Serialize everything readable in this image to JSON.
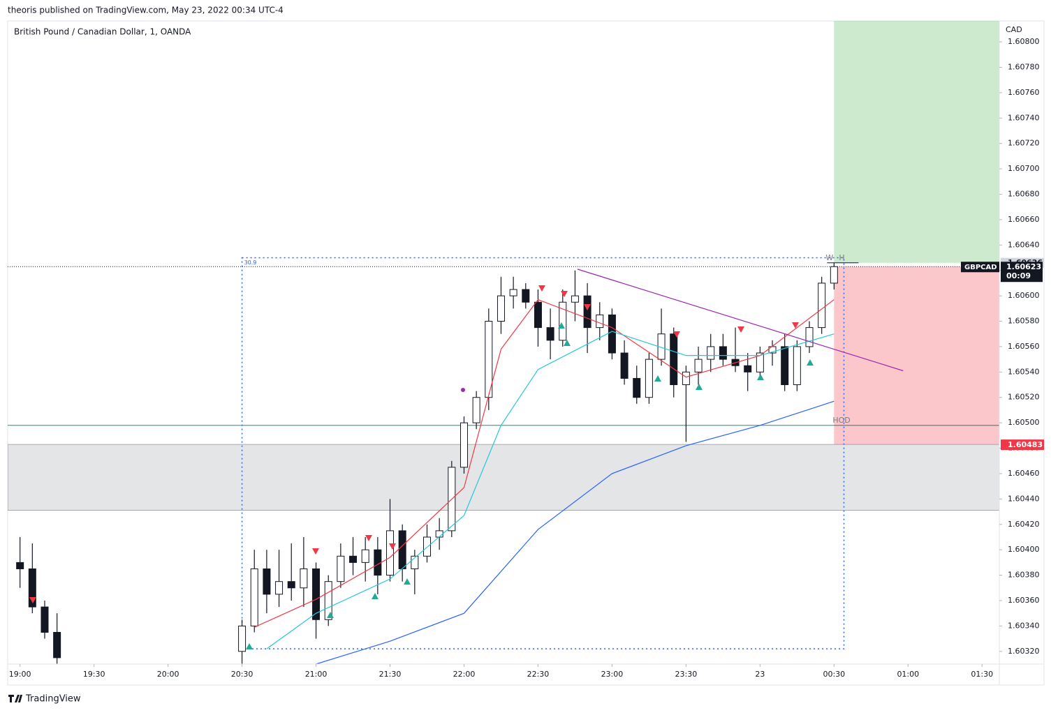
{
  "header": {
    "publisher": "theoris published on TradingView.com, May 23, 2022 00:34 UTC-4"
  },
  "footer": {
    "brand": "TradingView"
  },
  "chart_data": {
    "type": "candlestick",
    "title": "British Pound / Canadian Dollar, 1, OANDA",
    "axis_unit": "CAD",
    "x": [
      "19:00",
      "19:05",
      "19:10",
      "19:15",
      "20:30",
      "20:35",
      "20:40",
      "20:45",
      "20:50",
      "20:55",
      "21:00",
      "21:05",
      "21:10",
      "21:15",
      "21:20",
      "21:25",
      "21:30",
      "21:35",
      "21:40",
      "21:45",
      "21:50",
      "21:55",
      "22:00",
      "22:05",
      "22:10",
      "22:15",
      "22:20",
      "22:25",
      "22:30",
      "22:35",
      "22:40",
      "22:45",
      "22:50",
      "22:55",
      "23:00",
      "23:05",
      "23:10",
      "23:15",
      "23:20",
      "23:25",
      "23:30",
      "23:35",
      "23:40",
      "23:45",
      "23:50",
      "23:55",
      "00:00",
      "00:05",
      "00:10",
      "00:15",
      "00:20",
      "00:25",
      "00:30"
    ],
    "open": [
      1.6039,
      1.60385,
      1.60355,
      1.60335,
      1.6032,
      1.6034,
      1.60385,
      1.60365,
      1.60375,
      1.6037,
      1.60385,
      1.60345,
      1.60375,
      1.60395,
      1.6039,
      1.604,
      1.6038,
      1.60415,
      1.60385,
      1.60395,
      1.6041,
      1.60415,
      1.60465,
      1.605,
      1.6052,
      1.6058,
      1.606,
      1.60605,
      1.60595,
      1.60575,
      1.60565,
      1.60595,
      1.606,
      1.60575,
      1.60585,
      1.60555,
      1.60535,
      1.6052,
      1.6055,
      1.6057,
      1.6053,
      1.6054,
      1.6055,
      1.6056,
      1.6055,
      1.60545,
      1.6054,
      1.60555,
      1.6056,
      1.6053,
      1.6056,
      1.60575,
      1.6061
    ],
    "high": [
      1.6041,
      1.60405,
      1.6036,
      1.6035,
      1.60345,
      1.604,
      1.604,
      1.604,
      1.60405,
      1.6041,
      1.6039,
      1.6038,
      1.60405,
      1.6041,
      1.6041,
      1.6041,
      1.6044,
      1.6042,
      1.604,
      1.6042,
      1.60425,
      1.6047,
      1.60505,
      1.60525,
      1.6059,
      1.60615,
      1.60615,
      1.6061,
      1.60605,
      1.6059,
      1.60605,
      1.6062,
      1.6061,
      1.60595,
      1.6059,
      1.60565,
      1.60545,
      1.60555,
      1.6059,
      1.60575,
      1.60545,
      1.6056,
      1.6057,
      1.6057,
      1.60575,
      1.60555,
      1.6056,
      1.60565,
      1.6057,
      1.60565,
      1.6058,
      1.60615,
      1.60626
    ],
    "low": [
      1.6037,
      1.6035,
      1.6033,
      1.6031,
      1.6031,
      1.60335,
      1.6035,
      1.60355,
      1.6036,
      1.60355,
      1.6033,
      1.6034,
      1.6037,
      1.6038,
      1.60375,
      1.60365,
      1.60375,
      1.60375,
      1.60365,
      1.6039,
      1.604,
      1.6041,
      1.6046,
      1.60495,
      1.6051,
      1.6057,
      1.6059,
      1.6059,
      1.6056,
      1.6055,
      1.6056,
      1.6058,
      1.60555,
      1.60565,
      1.6055,
      1.6053,
      1.60515,
      1.60515,
      1.60545,
      1.6052,
      1.60485,
      1.6053,
      1.6054,
      1.60545,
      1.6054,
      1.60525,
      1.60535,
      1.60545,
      1.60525,
      1.60525,
      1.60555,
      1.6057,
      1.60605
    ],
    "close": [
      1.60385,
      1.60355,
      1.60335,
      1.60315,
      1.6034,
      1.60385,
      1.60365,
      1.60375,
      1.6037,
      1.60385,
      1.60345,
      1.60375,
      1.60395,
      1.6039,
      1.604,
      1.6038,
      1.60415,
      1.60385,
      1.60395,
      1.6041,
      1.60415,
      1.60465,
      1.605,
      1.6052,
      1.6058,
      1.606,
      1.60605,
      1.60595,
      1.60575,
      1.60565,
      1.60595,
      1.606,
      1.60575,
      1.60585,
      1.60555,
      1.60535,
      1.6052,
      1.6055,
      1.6057,
      1.6053,
      1.6054,
      1.6055,
      1.6056,
      1.6055,
      1.60545,
      1.6054,
      1.60555,
      1.6056,
      1.6053,
      1.6056,
      1.60575,
      1.6061,
      1.60623
    ],
    "color_up": "#ffffff",
    "color_down": "#131722",
    "series": [
      {
        "color": "#f23645",
        "x": [
          "20:35",
          "21:00",
          "21:30",
          "22:00",
          "22:15",
          "22:30",
          "23:00",
          "23:30",
          "00:00",
          "00:30"
        ],
        "values": [
          1.60339,
          1.60361,
          1.60394,
          1.60449,
          1.60558,
          1.60597,
          1.60575,
          1.60536,
          1.60553,
          1.60597
        ]
      },
      {
        "color": "#26c6da",
        "x": [
          "20:40",
          "21:00",
          "21:30",
          "22:00",
          "22:15",
          "22:30",
          "23:00",
          "23:30",
          "00:00",
          "00:30"
        ],
        "values": [
          1.60322,
          1.6035,
          1.60377,
          1.60427,
          1.60498,
          1.60542,
          1.60572,
          1.60553,
          1.60553,
          1.6057
        ]
      },
      {
        "color": "#2962ff",
        "x": [
          "21:00",
          "21:30",
          "22:00",
          "22:30",
          "23:00",
          "23:30",
          "00:00",
          "00:30"
        ],
        "values": [
          1.6031,
          1.60328,
          1.6035,
          1.60416,
          1.6046,
          1.60482,
          1.60498,
          1.60517
        ]
      }
    ],
    "xlim": [
      "18:55",
      "01:37"
    ],
    "xticks": [
      "19:00",
      "19:30",
      "20:00",
      "20:30",
      "21:00",
      "21:30",
      "22:00",
      "22:30",
      "23:00",
      "23:30",
      {
        "value": "00:00",
        "label": "23"
      },
      "00:30",
      "01:00",
      "01:30"
    ],
    "ylim": [
      1.6031,
      1.608165
    ],
    "yticks": [
      {
        "value": 1.6032,
        "label": "1.60320"
      },
      {
        "value": 1.6034,
        "label": "1.60340"
      },
      {
        "value": 1.6036,
        "label": "1.60360"
      },
      {
        "value": 1.6038,
        "label": "1.60380"
      },
      {
        "value": 1.604,
        "label": "1.60400"
      },
      {
        "value": 1.6042,
        "label": "1.60420"
      },
      {
        "value": 1.6044,
        "label": "1.60440"
      },
      {
        "value": 1.6046,
        "label": "1.60460"
      },
      {
        "value": 1.6048,
        "label": "1.60480"
      },
      {
        "value": 1.605,
        "label": "1.60500"
      },
      {
        "value": 1.6052,
        "label": "1.60520"
      },
      {
        "value": 1.6054,
        "label": "1.60540"
      },
      {
        "value": 1.6056,
        "label": "1.60560"
      },
      {
        "value": 1.6058,
        "label": "1.60580"
      },
      {
        "value": 1.606,
        "label": "1.60600"
      },
      {
        "value": 1.6062,
        "label": "1.60620"
      },
      {
        "value": 1.6064,
        "label": "1.60640"
      },
      {
        "value": 1.6066,
        "label": "1.60660"
      },
      {
        "value": 1.6068,
        "label": "1.60680"
      },
      {
        "value": 1.607,
        "label": "1.60700"
      },
      {
        "value": 1.6072,
        "label": "1.60720"
      },
      {
        "value": 1.6074,
        "label": "1.60740"
      },
      {
        "value": 1.6076,
        "label": "1.60760"
      },
      {
        "value": 1.6078,
        "label": "1.60780"
      },
      {
        "value": 1.608,
        "label": "1.60800"
      }
    ],
    "annotations": {
      "symbol": "GBPCAD",
      "countdown": "00:09",
      "last_price": 1.60623,
      "wh_level": 1.60626,
      "w_text": "W",
      "h_text": "H",
      "hod_text": "HOD",
      "hod_level": 1.60498,
      "zone": [
        1.60431,
        1.60483
      ],
      "stop": 1.60483,
      "position_start": "00:30",
      "measure": {
        "x": [
          "20:30",
          "00:34"
        ],
        "y": [
          1.60322,
          1.6063
        ],
        "label": "30.9"
      },
      "trendline": {
        "x": [
          "22:46",
          "00:58"
        ],
        "values": [
          1.60621,
          1.60541
        ],
        "color": "#9c27b0"
      }
    }
  }
}
